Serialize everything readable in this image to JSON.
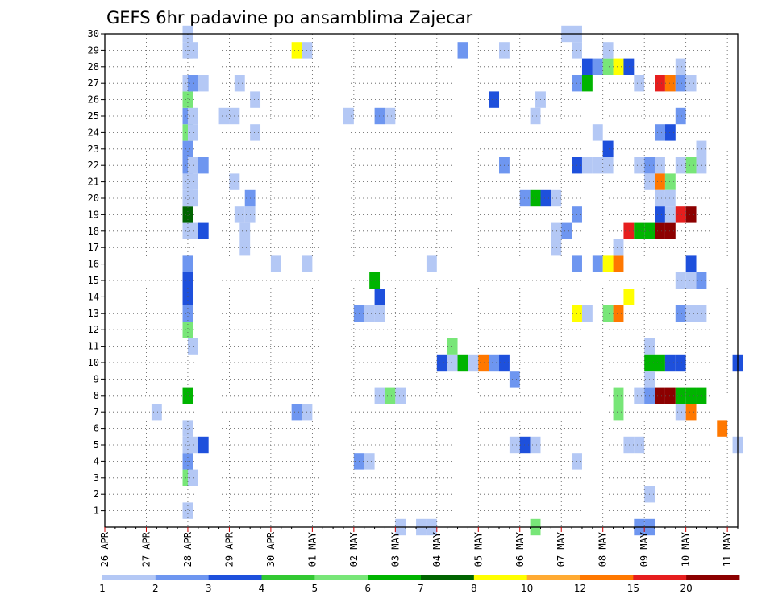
{
  "chart_data": {
    "type": "heatmap",
    "title": "GEFS 6hr padavine po ansamblima Zajecar",
    "xlabel": "",
    "ylabel": "",
    "x_tick_labels": [
      "26 APR",
      "27 APR",
      "28 APR",
      "29 APR",
      "30 APR",
      "01 MAY",
      "02 MAY",
      "03 MAY",
      "04 MAY",
      "05 MAY",
      "06 MAY",
      "07 MAY",
      "08 MAY",
      "09 MAY",
      "10 MAY",
      "11 MAY"
    ],
    "xlim": [
      0,
      61
    ],
    "y_tick_labels": [
      "1",
      "2",
      "3",
      "4",
      "5",
      "6",
      "7",
      "8",
      "9",
      "10",
      "11",
      "12",
      "13",
      "14",
      "15",
      "16",
      "17",
      "18",
      "19",
      "20",
      "21",
      "22",
      "23",
      "24",
      "25",
      "26",
      "27",
      "28",
      "29",
      "30"
    ],
    "ylim": [
      0,
      30
    ],
    "grid": true,
    "x_unit": "6-hour step from 26 APR 00Z",
    "y_unit": "ensemble member",
    "colorbar": {
      "levels": [
        "1",
        "2",
        "3",
        "4",
        "5",
        "6",
        "7",
        "8",
        "10",
        "12",
        "15",
        "20"
      ],
      "colors": [
        "#b4c8f5",
        "#6e96f0",
        "#1e50dc",
        "#32c832",
        "#78e678",
        "#00b400",
        "#006400",
        "#ffff00",
        "#ffaa32",
        "#ff7800",
        "#e61e1e",
        "#8c0000"
      ]
    },
    "cells": [
      [
        7.5,
        1,
        1
      ],
      [
        7.5,
        3,
        5
      ],
      [
        8,
        3,
        1
      ],
      [
        7.5,
        4,
        2
      ],
      [
        7.5,
        5,
        1
      ],
      [
        8,
        5,
        1
      ],
      [
        9,
        5,
        3
      ],
      [
        7.5,
        6,
        1
      ],
      [
        4.5,
        7,
        1
      ],
      [
        7.5,
        8,
        6
      ],
      [
        8,
        11,
        1
      ],
      [
        7.5,
        12,
        5
      ],
      [
        7.5,
        13,
        2
      ],
      [
        7.5,
        14,
        3
      ],
      [
        7.5,
        15,
        3
      ],
      [
        7.5,
        16,
        2
      ],
      [
        7.5,
        18,
        1
      ],
      [
        8,
        18,
        1
      ],
      [
        9,
        18,
        3
      ],
      [
        7.5,
        19,
        7
      ],
      [
        7.5,
        20,
        1
      ],
      [
        8,
        20,
        1
      ],
      [
        7.5,
        21,
        1
      ],
      [
        8,
        21,
        1
      ],
      [
        7.5,
        22,
        2
      ],
      [
        8,
        22,
        1
      ],
      [
        9,
        22,
        2
      ],
      [
        7.5,
        23,
        2
      ],
      [
        7.5,
        24,
        5
      ],
      [
        8,
        24,
        1
      ],
      [
        7.5,
        25,
        2
      ],
      [
        8,
        25,
        1
      ],
      [
        7.5,
        26,
        5
      ],
      [
        7.5,
        27,
        1
      ],
      [
        8,
        27,
        2
      ],
      [
        9,
        27,
        1
      ],
      [
        7.5,
        29,
        1
      ],
      [
        8,
        29,
        1
      ],
      [
        7.5,
        30,
        1
      ],
      [
        13,
        17,
        1
      ],
      [
        13,
        18,
        1
      ],
      [
        12.5,
        19,
        1
      ],
      [
        13.5,
        19,
        1
      ],
      [
        13.5,
        20,
        2
      ],
      [
        12,
        21,
        1
      ],
      [
        11,
        25,
        1
      ],
      [
        12,
        25,
        1
      ],
      [
        12.5,
        27,
        1
      ],
      [
        14,
        26,
        1
      ],
      [
        14,
        24,
        1
      ],
      [
        16,
        16,
        1
      ],
      [
        19,
        16,
        1
      ],
      [
        18,
        7,
        2
      ],
      [
        19,
        7,
        1
      ],
      [
        18,
        29,
        8
      ],
      [
        19,
        29,
        1
      ],
      [
        23,
        25,
        1
      ],
      [
        24,
        13,
        2
      ],
      [
        25,
        13,
        1
      ],
      [
        26,
        13,
        1
      ],
      [
        24,
        4,
        2
      ],
      [
        25,
        4,
        1
      ],
      [
        26,
        8,
        1
      ],
      [
        27,
        8,
        5
      ],
      [
        28,
        8,
        1
      ],
      [
        26,
        14,
        3
      ],
      [
        25.5,
        15,
        6
      ],
      [
        26,
        25,
        2
      ],
      [
        27,
        25,
        1
      ],
      [
        28,
        0,
        1
      ],
      [
        30,
        0,
        1
      ],
      [
        31,
        0,
        1
      ],
      [
        31,
        16,
        1
      ],
      [
        32,
        10,
        3
      ],
      [
        33,
        10,
        1
      ],
      [
        33,
        11,
        5
      ],
      [
        34,
        10,
        6
      ],
      [
        35,
        10,
        1
      ],
      [
        36,
        10,
        10
      ],
      [
        37,
        10,
        2
      ],
      [
        38,
        10,
        3
      ],
      [
        34,
        29,
        2
      ],
      [
        37,
        26,
        3
      ],
      [
        38,
        22,
        2
      ],
      [
        38,
        29,
        1
      ],
      [
        39,
        9,
        2
      ],
      [
        39,
        5,
        1
      ],
      [
        40,
        5,
        3
      ],
      [
        41,
        5,
        1
      ],
      [
        40,
        20,
        2
      ],
      [
        41,
        20,
        6
      ],
      [
        42,
        20,
        3
      ],
      [
        43,
        20,
        1
      ],
      [
        41,
        25,
        1
      ],
      [
        41.5,
        26,
        1
      ],
      [
        41,
        0,
        5
      ],
      [
        43,
        17,
        1
      ],
      [
        43,
        18,
        1
      ],
      [
        44,
        18,
        2
      ],
      [
        44,
        30,
        1
      ],
      [
        45,
        30,
        1
      ],
      [
        45,
        29,
        1
      ],
      [
        45,
        27,
        2
      ],
      [
        46,
        27,
        6
      ],
      [
        45,
        22,
        3
      ],
      [
        46,
        22,
        1
      ],
      [
        47,
        22,
        1
      ],
      [
        45,
        19,
        2
      ],
      [
        45,
        16,
        2
      ],
      [
        45,
        13,
        8
      ],
      [
        46,
        13,
        1
      ],
      [
        45,
        4,
        1
      ],
      [
        46,
        28,
        3
      ],
      [
        47,
        28,
        2
      ],
      [
        48,
        28,
        5
      ],
      [
        49,
        28,
        8
      ],
      [
        50,
        28,
        3
      ],
      [
        47,
        24,
        1
      ],
      [
        48,
        23,
        1
      ],
      [
        48,
        23,
        1
      ],
      [
        48,
        22,
        1
      ],
      [
        48,
        23,
        3
      ],
      [
        47,
        16,
        2
      ],
      [
        48,
        16,
        8
      ],
      [
        49,
        16,
        10
      ],
      [
        48,
        13,
        5
      ],
      [
        49,
        13,
        10
      ],
      [
        50,
        14,
        8
      ],
      [
        48,
        29,
        1
      ],
      [
        49,
        17,
        1
      ],
      [
        49,
        7,
        5
      ],
      [
        49,
        8,
        5
      ],
      [
        50,
        18,
        11
      ],
      [
        51,
        18,
        6
      ],
      [
        52,
        18,
        6
      ],
      [
        53,
        18,
        12
      ],
      [
        54,
        18,
        12
      ],
      [
        50,
        5,
        1
      ],
      [
        51,
        5,
        1
      ],
      [
        51,
        27,
        1
      ],
      [
        51,
        22,
        1
      ],
      [
        51,
        0,
        2
      ],
      [
        52,
        0,
        2
      ],
      [
        51,
        8,
        1
      ],
      [
        52,
        11,
        1
      ],
      [
        52,
        10,
        6
      ],
      [
        53,
        10,
        6
      ],
      [
        54,
        10,
        3
      ],
      [
        55,
        10,
        3
      ],
      [
        52,
        9,
        1
      ],
      [
        52,
        2,
        1
      ],
      [
        52,
        22,
        2
      ],
      [
        53,
        22,
        1
      ],
      [
        53,
        21,
        10
      ],
      [
        54,
        21,
        5
      ],
      [
        52,
        21,
        1
      ],
      [
        52,
        8,
        2
      ],
      [
        53,
        8,
        12
      ],
      [
        54,
        8,
        12
      ],
      [
        55,
        8,
        6
      ],
      [
        56,
        8,
        6
      ],
      [
        57,
        8,
        6
      ],
      [
        53,
        20,
        1
      ],
      [
        54,
        20,
        1
      ],
      [
        53,
        19,
        3
      ],
      [
        54,
        19,
        1
      ],
      [
        55,
        19,
        11
      ],
      [
        56,
        19,
        12
      ],
      [
        53,
        24,
        2
      ],
      [
        54,
        24,
        3
      ],
      [
        54,
        27,
        1
      ],
      [
        53,
        27,
        11
      ],
      [
        54,
        27,
        10
      ],
      [
        55,
        27,
        2
      ],
      [
        56,
        27,
        1
      ],
      [
        55,
        22,
        1
      ],
      [
        56,
        22,
        5
      ],
      [
        57,
        22,
        1
      ],
      [
        57,
        23,
        1
      ],
      [
        55,
        25,
        2
      ],
      [
        55,
        28,
        1
      ],
      [
        55,
        13,
        2
      ],
      [
        56,
        13,
        1
      ],
      [
        57,
        13,
        1
      ],
      [
        55,
        15,
        1
      ],
      [
        56,
        15,
        1
      ],
      [
        57,
        15,
        2
      ],
      [
        56,
        16,
        3
      ],
      [
        55,
        7,
        1
      ],
      [
        56,
        7,
        10
      ],
      [
        59,
        6,
        10
      ],
      [
        60.5,
        5,
        1
      ],
      [
        60.5,
        10,
        3
      ]
    ]
  }
}
